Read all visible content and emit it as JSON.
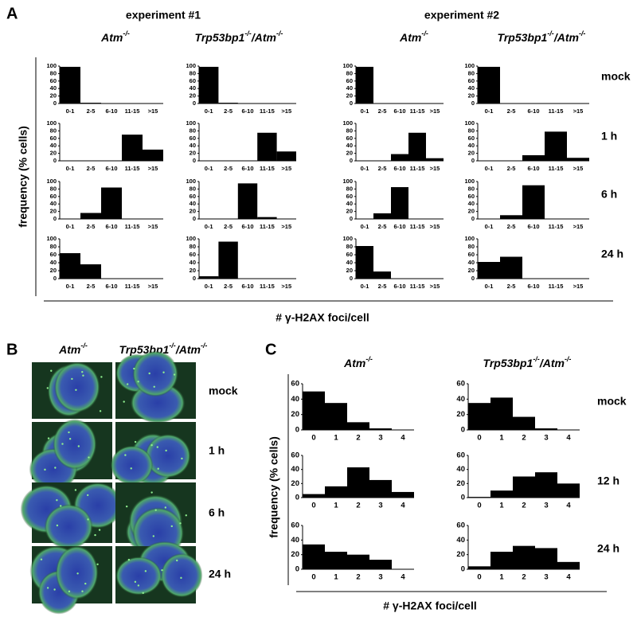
{
  "panel_labels": [
    "A",
    "B",
    "C"
  ],
  "panel_a": {
    "experiments": [
      {
        "title": "experiment #1",
        "columns": [
          [
            "Atm",
            "-/-"
          ],
          [
            "Trp53bp1",
            "-/-",
            "/Atm",
            "-/-"
          ]
        ]
      },
      {
        "title": "experiment #2",
        "columns": [
          [
            "Atm",
            "-/-"
          ],
          [
            "Trp53bp1",
            "-/-",
            "/Atm",
            "-/-"
          ]
        ]
      }
    ],
    "rows": [
      "mock",
      "1 h",
      "6 h",
      "24 h"
    ],
    "ylabel": "frequency (% cells)",
    "xlabel": "# γ-H2AX foci/cell"
  },
  "panel_b": {
    "columns": [
      [
        "Atm",
        "-/-"
      ],
      [
        "Trp53bp1",
        "-/-",
        "/Atm",
        "-/-"
      ]
    ],
    "rows": [
      "mock",
      "1 h",
      "6 h",
      "24 h"
    ]
  },
  "panel_c": {
    "columns": [
      [
        "Atm",
        "-/-"
      ],
      [
        "Trp53bp1",
        "-/-",
        "/Atm",
        "-/-"
      ]
    ],
    "rows": [
      "mock",
      "12 h",
      "24 h"
    ],
    "ylabel": "frequency (% cells)",
    "xlabel": "# γ-H2AX foci/cell"
  },
  "chart_data": [
    {
      "type": "bar",
      "categories": [
        "0-1",
        "2-5",
        "6-10",
        "11-15",
        ">15"
      ],
      "values": [
        98,
        2,
        0,
        0,
        0
      ],
      "ylim": [
        0,
        100
      ],
      "yticks": [
        0,
        20,
        40,
        60,
        80,
        100
      ],
      "color": "#000000"
    },
    {
      "type": "bar",
      "categories": [
        "0-1",
        "2-5",
        "6-10",
        "11-15",
        ">15"
      ],
      "values": [
        0,
        0,
        0,
        70,
        30
      ],
      "ylim": [
        0,
        100
      ],
      "yticks": [
        0,
        20,
        40,
        60,
        80,
        100
      ],
      "color": "#000000"
    },
    {
      "type": "bar",
      "categories": [
        "0-1",
        "2-5",
        "6-10",
        "11-15",
        ">15"
      ],
      "values": [
        0,
        16,
        84,
        0,
        0
      ],
      "ylim": [
        0,
        100
      ],
      "yticks": [
        0,
        20,
        40,
        60,
        80,
        100
      ],
      "color": "#000000"
    },
    {
      "type": "bar",
      "categories": [
        "0-1",
        "2-5",
        "6-10",
        "11-15",
        ">15"
      ],
      "values": [
        64,
        36,
        0,
        0,
        0
      ],
      "ylim": [
        0,
        100
      ],
      "yticks": [
        0,
        20,
        40,
        60,
        80,
        100
      ],
      "color": "#000000"
    },
    {
      "type": "bar",
      "categories": [
        "0-1",
        "2-5",
        "6-10",
        "11-15",
        ">15"
      ],
      "values": [
        98,
        2,
        0,
        0,
        0
      ],
      "ylim": [
        0,
        100
      ],
      "yticks": [
        0,
        20,
        40,
        60,
        80,
        100
      ],
      "color": "#000000"
    },
    {
      "type": "bar",
      "categories": [
        "0-1",
        "2-5",
        "6-10",
        "11-15",
        ">15"
      ],
      "values": [
        0,
        0,
        0,
        75,
        25
      ],
      "ylim": [
        0,
        100
      ],
      "yticks": [
        0,
        20,
        40,
        60,
        80,
        100
      ],
      "color": "#000000"
    },
    {
      "type": "bar",
      "categories": [
        "0-1",
        "2-5",
        "6-10",
        "11-15",
        ">15"
      ],
      "values": [
        0,
        0,
        95,
        5,
        0
      ],
      "ylim": [
        0,
        100
      ],
      "yticks": [
        0,
        20,
        40,
        60,
        80,
        100
      ],
      "color": "#000000"
    },
    {
      "type": "bar",
      "categories": [
        "0-1",
        "2-5",
        "6-10",
        "11-15",
        ">15"
      ],
      "values": [
        6,
        93,
        0,
        0,
        0
      ],
      "ylim": [
        0,
        100
      ],
      "yticks": [
        0,
        20,
        40,
        60,
        80,
        100
      ],
      "color": "#000000"
    },
    {
      "type": "bar",
      "categories": [
        "0-1",
        "2-5",
        "6-10",
        "11-15",
        ">15"
      ],
      "values": [
        98,
        0,
        0,
        0,
        0
      ],
      "ylim": [
        0,
        100
      ],
      "yticks": [
        0,
        20,
        40,
        60,
        80,
        100
      ],
      "color": "#000000"
    },
    {
      "type": "bar",
      "categories": [
        "0-1",
        "2-5",
        "6-10",
        "11-15",
        ">15"
      ],
      "values": [
        0,
        0,
        18,
        75,
        7
      ],
      "ylim": [
        0,
        100
      ],
      "yticks": [
        0,
        20,
        40,
        60,
        80,
        100
      ],
      "color": "#000000"
    },
    {
      "type": "bar",
      "categories": [
        "0-1",
        "2-5",
        "6-10",
        "11-15",
        ">15"
      ],
      "values": [
        0,
        15,
        85,
        0,
        0
      ],
      "ylim": [
        0,
        100
      ],
      "yticks": [
        0,
        20,
        40,
        60,
        80,
        100
      ],
      "color": "#000000"
    },
    {
      "type": "bar",
      "categories": [
        "0-1",
        "2-5",
        "6-10",
        "11-15",
        ">15"
      ],
      "values": [
        82,
        18,
        0,
        0,
        0
      ],
      "ylim": [
        0,
        100
      ],
      "yticks": [
        0,
        20,
        40,
        60,
        80,
        100
      ],
      "color": "#000000"
    },
    {
      "type": "bar",
      "categories": [
        "0-1",
        "2-5",
        "6-10",
        "11-15",
        ">15"
      ],
      "values": [
        98,
        0,
        0,
        0,
        0
      ],
      "ylim": [
        0,
        100
      ],
      "yticks": [
        0,
        20,
        40,
        60,
        80,
        100
      ],
      "color": "#000000"
    },
    {
      "type": "bar",
      "categories": [
        "0-1",
        "2-5",
        "6-10",
        "11-15",
        ">15"
      ],
      "values": [
        0,
        0,
        15,
        78,
        8
      ],
      "ylim": [
        0,
        100
      ],
      "yticks": [
        0,
        20,
        40,
        60,
        80,
        100
      ],
      "color": "#000000"
    },
    {
      "type": "bar",
      "categories": [
        "0-1",
        "2-5",
        "6-10",
        "11-15",
        ">15"
      ],
      "values": [
        0,
        10,
        90,
        0,
        0
      ],
      "ylim": [
        0,
        100
      ],
      "yticks": [
        0,
        20,
        40,
        60,
        80,
        100
      ],
      "color": "#000000"
    },
    {
      "type": "bar",
      "categories": [
        "0-1",
        "2-5",
        "6-10",
        "11-15",
        ">15"
      ],
      "values": [
        42,
        55,
        0,
        0,
        0
      ],
      "ylim": [
        0,
        100
      ],
      "yticks": [
        0,
        20,
        40,
        60,
        80,
        100
      ],
      "color": "#000000"
    },
    {
      "type": "bar",
      "categories": [
        "0",
        "1",
        "2",
        "3",
        "4"
      ],
      "values": [
        50,
        35,
        10,
        2,
        0
      ],
      "ylim": [
        0,
        60
      ],
      "yticks": [
        0,
        20,
        40,
        60
      ],
      "color": "#000000"
    },
    {
      "type": "bar",
      "categories": [
        "0",
        "1",
        "2",
        "3",
        "4"
      ],
      "values": [
        5,
        16,
        43,
        25,
        8
      ],
      "ylim": [
        0,
        60
      ],
      "yticks": [
        0,
        20,
        40,
        60
      ],
      "color": "#000000"
    },
    {
      "type": "bar",
      "categories": [
        "0",
        "1",
        "2",
        "3",
        "4"
      ],
      "values": [
        34,
        24,
        20,
        13,
        0
      ],
      "ylim": [
        0,
        60
      ],
      "yticks": [
        0,
        20,
        40,
        60
      ],
      "color": "#000000"
    },
    {
      "type": "bar",
      "categories": [
        "0",
        "1",
        "2",
        "3",
        "4"
      ],
      "values": [
        35,
        42,
        17,
        2,
        0
      ],
      "ylim": [
        0,
        60
      ],
      "yticks": [
        0,
        20,
        40,
        60
      ],
      "color": "#000000"
    },
    {
      "type": "bar",
      "categories": [
        "0",
        "1",
        "2",
        "3",
        "4"
      ],
      "values": [
        1,
        10,
        30,
        36,
        20
      ],
      "ylim": [
        0,
        60
      ],
      "yticks": [
        0,
        20,
        40,
        60
      ],
      "color": "#000000"
    },
    {
      "type": "bar",
      "categories": [
        "0",
        "1",
        "2",
        "3",
        "4"
      ],
      "values": [
        4,
        24,
        32,
        29,
        10
      ],
      "ylim": [
        0,
        60
      ],
      "yticks": [
        0,
        20,
        40,
        60
      ],
      "color": "#000000"
    }
  ]
}
